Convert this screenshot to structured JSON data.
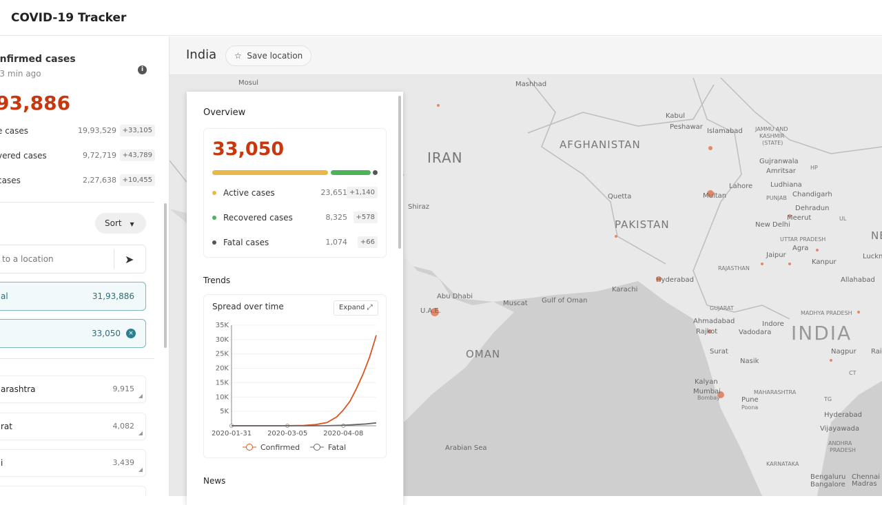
{
  "app": {
    "title": "COVID-19 Tracker"
  },
  "summary": {
    "title": "onfirmed cases",
    "updated": "d 3 min ago",
    "total": "93,886",
    "rows": [
      {
        "label": "e cases",
        "value": "19,93,529",
        "delta": "+33,105"
      },
      {
        "label": "vered cases",
        "value": "9,72,719",
        "delta": "+43,789"
      },
      {
        "label": " cases",
        "value": "2,27,638",
        "delta": "+10,455"
      }
    ]
  },
  "list": {
    "sort_label": "Sort",
    "search_placeholder": "to a location",
    "selected": [
      {
        "name": "al",
        "value": "31,93,886"
      },
      {
        "name": "",
        "value": "33,050"
      }
    ],
    "items": [
      {
        "name": "arashtra",
        "value": "9,915"
      },
      {
        "name": "rat",
        "value": "4,082"
      },
      {
        "name": "i",
        "value": "3,439"
      }
    ]
  },
  "map": {
    "country": "India",
    "save_label": "Save location",
    "labels": [
      "Mosul",
      "Mashhad",
      "Kabul",
      "Peshawar",
      "Islamabad",
      "JAMMU AND",
      "KASHMIR",
      "(STATE)",
      "IRAN",
      "AFGHANISTAN",
      "PAKISTAN",
      "Gujranwala",
      "Amritsar",
      "HP",
      "Ludhiana",
      "Lahore",
      "Multan",
      "PUNJAB",
      "Chandigarh",
      "Dehradun",
      "Meerut",
      "UL",
      "Quetta",
      "New Delhi",
      "NEPA",
      "UTTAR PRADESH",
      "Agra",
      "Jaipur",
      "Lucknow",
      "Kanpur",
      "RAJASTHAN",
      "Shiraz",
      "Hyderabad",
      "Allahabad",
      "Karachi",
      "Abu Dhabi",
      "U.A.E.",
      "Muscat",
      "Gulf of Oman",
      "GUJARAT",
      "MADHYA PRADESH",
      "Ahmadabad",
      "Indore",
      "Rajkot",
      "Vadodara",
      "INDIA",
      "OMAN",
      "Surat",
      "Nagpur",
      "Raipur",
      "Nasik",
      "CT",
      "Kalyan",
      "MAHARASHTRA",
      "Mumbai",
      "Bombay",
      "Pune",
      "Poona",
      "TG",
      "Hyderabad",
      "Vijayawada",
      "Arabian Sea",
      "ANDHRA",
      "PRADESH",
      "KARNATAKA",
      "Bengaluru",
      "Bangalore",
      "Chennai",
      "Madras"
    ]
  },
  "overview": {
    "heading": "Overview",
    "total": "33,050",
    "rows": [
      {
        "label": "Active cases",
        "value": "23,651",
        "delta": "+1,140",
        "color": "#e8b84a"
      },
      {
        "label": "Recovered cases",
        "value": "8,325",
        "delta": "+578",
        "color": "#4cb35b"
      },
      {
        "label": "Fatal cases",
        "value": "1,074",
        "delta": "+66",
        "color": "#555555"
      }
    ],
    "trends_heading": "Trends",
    "chart_title": "Spread over time",
    "expand_label": "Expand",
    "news_heading": "News"
  },
  "chart_data": {
    "type": "line",
    "title": "Spread over time",
    "x_ticks": [
      "2020-01-31",
      "2020-03-05",
      "2020-04-08"
    ],
    "y_ticks": [
      "5K",
      "10K",
      "15K",
      "20K",
      "25K",
      "30K",
      "35K"
    ],
    "ylim": [
      0,
      35000
    ],
    "xlim": [
      "2020-01-31",
      "2020-04-28"
    ],
    "legend": "bottom",
    "series": [
      {
        "name": "Confirmed",
        "color": "#d9541e",
        "x": [
          "2020-01-31",
          "2020-03-01",
          "2020-03-15",
          "2020-03-22",
          "2020-03-29",
          "2020-04-04",
          "2020-04-08",
          "2020-04-12",
          "2020-04-16",
          "2020-04-20",
          "2020-04-24",
          "2020-04-27",
          "2020-04-28"
        ],
        "y": [
          1,
          3,
          110,
          400,
          1100,
          3100,
          5500,
          8500,
          13000,
          18000,
          24000,
          29500,
          31500
        ]
      },
      {
        "name": "Fatal",
        "color": "#666666",
        "x": [
          "2020-01-31",
          "2020-03-15",
          "2020-03-29",
          "2020-04-08",
          "2020-04-16",
          "2020-04-22",
          "2020-04-28"
        ],
        "y": [
          0,
          2,
          30,
          170,
          420,
          650,
          1008
        ]
      }
    ]
  }
}
